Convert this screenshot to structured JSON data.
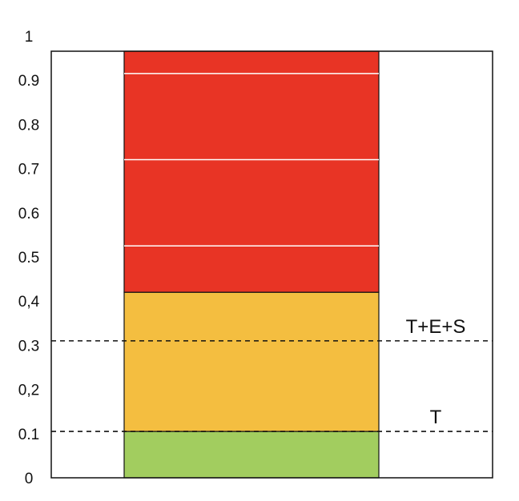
{
  "chart_data": {
    "type": "bar",
    "title": "",
    "xlabel": "",
    "ylabel": "",
    "ylim": [
      0,
      1
    ],
    "yticks": [
      {
        "value": 0,
        "label": "0"
      },
      {
        "value": 0.1,
        "label": "0.1"
      },
      {
        "value": 0.2,
        "label": "0,2"
      },
      {
        "value": 0.3,
        "label": "0.3"
      },
      {
        "value": 0.4,
        "label": "0,4"
      },
      {
        "value": 0.5,
        "label": "0.5"
      },
      {
        "value": 0.6,
        "label": "0.6"
      },
      {
        "value": 0.7,
        "label": "0.7"
      },
      {
        "value": 0.8,
        "label": "0.8"
      },
      {
        "value": 0.9,
        "label": "0.9"
      },
      {
        "value": 1,
        "label": "1"
      }
    ],
    "segments": [
      {
        "from": 0,
        "to": 0.105,
        "color": "#a2cd5f"
      },
      {
        "from": 0.105,
        "to": 0.42,
        "color": "#f4be40"
      },
      {
        "from": 0.42,
        "to": 1.0,
        "color": "#e83425"
      }
    ],
    "divider_lines": [
      0.525,
      0.72,
      0.915
    ],
    "reference_lines": [
      {
        "value": 0.31,
        "label": "T+E+S"
      },
      {
        "value": 0.105,
        "label": "T"
      }
    ],
    "grid": false
  }
}
